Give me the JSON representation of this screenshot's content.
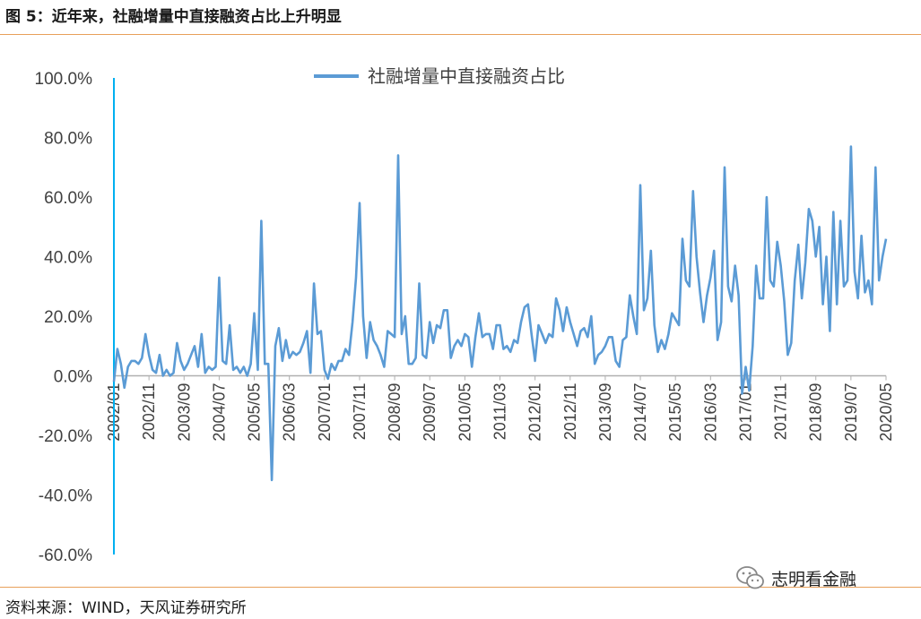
{
  "header": {
    "title": "图 5：近年来，社融增量中直接融资占比上升明显"
  },
  "footer": {
    "source": "资料来源：WIND，天风证券研究所"
  },
  "watermark": {
    "text": "志明看金融",
    "icon": "wechat-icon"
  },
  "colors": {
    "line": "#5b9bd5",
    "axis": "#00b0f0",
    "rule": "#e8a05a",
    "text": "#404040"
  },
  "chart_data": {
    "type": "line",
    "series": [
      {
        "name": "社融增量中直接融资占比",
        "start": "2002/01",
        "values": [
          -2,
          9,
          4,
          -4,
          3,
          5,
          5,
          4,
          6,
          14,
          7,
          2,
          1,
          7,
          0,
          2,
          0,
          1,
          11,
          5,
          2,
          4,
          7,
          10,
          3,
          14,
          1,
          3,
          2,
          3,
          33,
          5,
          4,
          17,
          2,
          3,
          1,
          3,
          0,
          4,
          21,
          2,
          52,
          4,
          4,
          -35,
          10,
          16,
          5,
          12,
          6,
          8,
          7,
          8,
          11,
          15,
          1,
          31,
          14,
          15,
          2,
          -1,
          4,
          2,
          5,
          5,
          9,
          7,
          18,
          33,
          58,
          20,
          6,
          18,
          12,
          10,
          7,
          3,
          15,
          14,
          13,
          74,
          14,
          20,
          4,
          4,
          6,
          31,
          7,
          6,
          18,
          11,
          17,
          16,
          22,
          22,
          6,
          10,
          12,
          10,
          14,
          13,
          3,
          13,
          21,
          13,
          14,
          14,
          9,
          17,
          17,
          9,
          10,
          8,
          12,
          11,
          18,
          23,
          24,
          14,
          5,
          17,
          14,
          11,
          14,
          13,
          26,
          22,
          15,
          23,
          18,
          14,
          10,
          15,
          16,
          13,
          20,
          4,
          7,
          8,
          10,
          13,
          13,
          5,
          3,
          12,
          13,
          27,
          20,
          14,
          64,
          22,
          26,
          42,
          17,
          8,
          12,
          9,
          14,
          21,
          19,
          17,
          46,
          32,
          30,
          62,
          40,
          28,
          18,
          27,
          33,
          42,
          12,
          18,
          70,
          30,
          25,
          37,
          27,
          -6,
          3,
          -5,
          10,
          37,
          26,
          26,
          60,
          32,
          30,
          45,
          37,
          25,
          7,
          11,
          32,
          44,
          26,
          38,
          56,
          52,
          40,
          50,
          24,
          40,
          15,
          55,
          24,
          52,
          30,
          32,
          77,
          35,
          26,
          47,
          28,
          32,
          24,
          70,
          32,
          40,
          46
        ]
      }
    ],
    "x_tick_labels": [
      "2002/01",
      "2002/11",
      "2003/09",
      "2004/07",
      "2005/05",
      "2006/03",
      "2007/01",
      "2007/11",
      "2008/09",
      "2009/07",
      "2010/05",
      "2011/03",
      "2012/01",
      "2012/11",
      "2013/09",
      "2014/07",
      "2015/05",
      "2016/03",
      "2017/01",
      "2017/11",
      "2018/09",
      "2019/07",
      "2020/05"
    ],
    "y_ticks": [
      100,
      80,
      60,
      40,
      20,
      0,
      -20,
      -40,
      -60
    ],
    "y_tick_labels": [
      "100.0%",
      "80.0%",
      "60.0%",
      "40.0%",
      "20.0%",
      "0.0%",
      "-20.0%",
      "-40.0%",
      "-60.0%"
    ],
    "ylim": [
      -60,
      100
    ],
    "grid": false,
    "legend_position": "top-center"
  }
}
